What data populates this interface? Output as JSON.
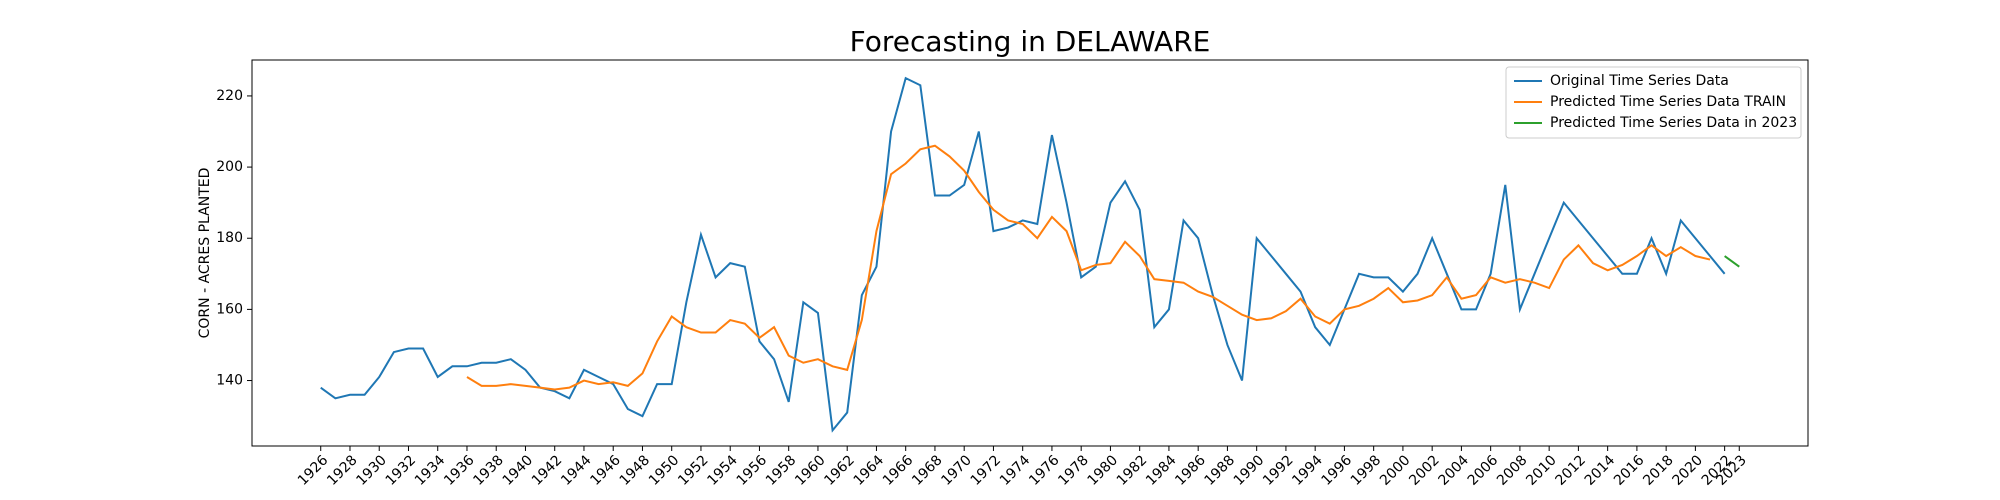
{
  "chart_data": {
    "type": "line",
    "title": "Forecasting in DELAWARE",
    "y_label": "CORN - ACRES PLANTED",
    "xlim": [
      1921.3,
      2027.7
    ],
    "ylim": [
      121.6,
      230.1
    ],
    "xticks": [
      1926,
      1928,
      1930,
      1932,
      1934,
      1936,
      1938,
      1940,
      1942,
      1944,
      1946,
      1948,
      1950,
      1952,
      1954,
      1956,
      1958,
      1960,
      1962,
      1964,
      1966,
      1968,
      1970,
      1972,
      1974,
      1976,
      1978,
      1980,
      1982,
      1984,
      1986,
      1988,
      1990,
      1992,
      1994,
      1996,
      1998,
      2000,
      2002,
      2004,
      2006,
      2008,
      2010,
      2012,
      2014,
      2016,
      2018,
      2020,
      2022,
      2023
    ],
    "yticks": [
      140,
      160,
      180,
      200,
      220
    ],
    "grid": false,
    "legend": "upper right",
    "series": [
      {
        "name": "Original Time Series Data",
        "color": "#1f77b4",
        "x": [
          1926,
          1927,
          1928,
          1929,
          1930,
          1931,
          1932,
          1933,
          1934,
          1935,
          1936,
          1937,
          1938,
          1939,
          1940,
          1941,
          1942,
          1943,
          1944,
          1945,
          1946,
          1947,
          1948,
          1949,
          1950,
          1951,
          1952,
          1953,
          1954,
          1955,
          1956,
          1957,
          1958,
          1959,
          1960,
          1961,
          1962,
          1963,
          1964,
          1965,
          1966,
          1967,
          1968,
          1969,
          1970,
          1971,
          1972,
          1973,
          1974,
          1975,
          1976,
          1977,
          1978,
          1979,
          1980,
          1981,
          1982,
          1983,
          1984,
          1985,
          1986,
          1987,
          1988,
          1989,
          1990,
          1991,
          1992,
          1993,
          1994,
          1995,
          1996,
          1997,
          1998,
          1999,
          2000,
          2001,
          2002,
          2003,
          2004,
          2005,
          2006,
          2007,
          2008,
          2009,
          2010,
          2011,
          2012,
          2013,
          2014,
          2015,
          2016,
          2017,
          2018,
          2019,
          2020,
          2021,
          2022
        ],
        "values": [
          138,
          135,
          136,
          136,
          141,
          148,
          149,
          149,
          141,
          144,
          144,
          145,
          145,
          146,
          143,
          138,
          137,
          135,
          143,
          141,
          139,
          132,
          130,
          139,
          139,
          162,
          181,
          169,
          173,
          172,
          151,
          146,
          134,
          162,
          159,
          126,
          131,
          164,
          172,
          210,
          225,
          223,
          192,
          192,
          195,
          210,
          182,
          183,
          185,
          184,
          209,
          190,
          169,
          172,
          190,
          196,
          188,
          155,
          160,
          185,
          180,
          164,
          150,
          140,
          180,
          175,
          170,
          165,
          155,
          150,
          160,
          170,
          169,
          169,
          165,
          170,
          180,
          170,
          160,
          160,
          170,
          195,
          160,
          170,
          180,
          190,
          185,
          180,
          175,
          170,
          170,
          180,
          170,
          185,
          180,
          175,
          170
        ]
      },
      {
        "name": "Predicted Time Series Data TRAIN",
        "color": "#ff7f0e",
        "x": [
          1936,
          1937,
          1938,
          1939,
          1940,
          1941,
          1942,
          1943,
          1944,
          1945,
          1946,
          1947,
          1948,
          1949,
          1950,
          1951,
          1952,
          1953,
          1954,
          1955,
          1956,
          1957,
          1958,
          1959,
          1960,
          1961,
          1962,
          1963,
          1964,
          1965,
          1966,
          1967,
          1968,
          1969,
          1970,
          1971,
          1972,
          1973,
          1974,
          1975,
          1976,
          1977,
          1978,
          1979,
          1980,
          1981,
          1982,
          1983,
          1984,
          1985,
          1986,
          1987,
          1988,
          1989,
          1990,
          1991,
          1992,
          1993,
          1994,
          1995,
          1996,
          1997,
          1998,
          1999,
          2000,
          2001,
          2002,
          2003,
          2004,
          2005,
          2006,
          2007,
          2008,
          2009,
          2010,
          2011,
          2012,
          2013,
          2014,
          2015,
          2016,
          2017,
          2018,
          2019,
          2020,
          2021
        ],
        "values": [
          141,
          138.5,
          138.5,
          139,
          138.5,
          138,
          137.5,
          138,
          140,
          139,
          139.5,
          138.5,
          142,
          151,
          158,
          155,
          153.5,
          153.5,
          157,
          156,
          152,
          155,
          147,
          145,
          146,
          144,
          143,
          157,
          182,
          198,
          201,
          205,
          206,
          203,
          199,
          193,
          188,
          185,
          184,
          180,
          186,
          182,
          171,
          172.5,
          173,
          179,
          175,
          168.5,
          168,
          167.5,
          165,
          163.5,
          161,
          158.5,
          157,
          157.5,
          159.5,
          163,
          158,
          156,
          160,
          161,
          163,
          166,
          162,
          162.5,
          164,
          169,
          163,
          164,
          169,
          167.5,
          168.5,
          167.5,
          166,
          174,
          178,
          173,
          171,
          172.5,
          175,
          178,
          175,
          177.5,
          175,
          174
        ]
      },
      {
        "name": "Predicted Time Series Data in 2023",
        "color": "#2ca02c",
        "x": [
          2022,
          2023
        ],
        "values": [
          175,
          172
        ]
      }
    ]
  }
}
